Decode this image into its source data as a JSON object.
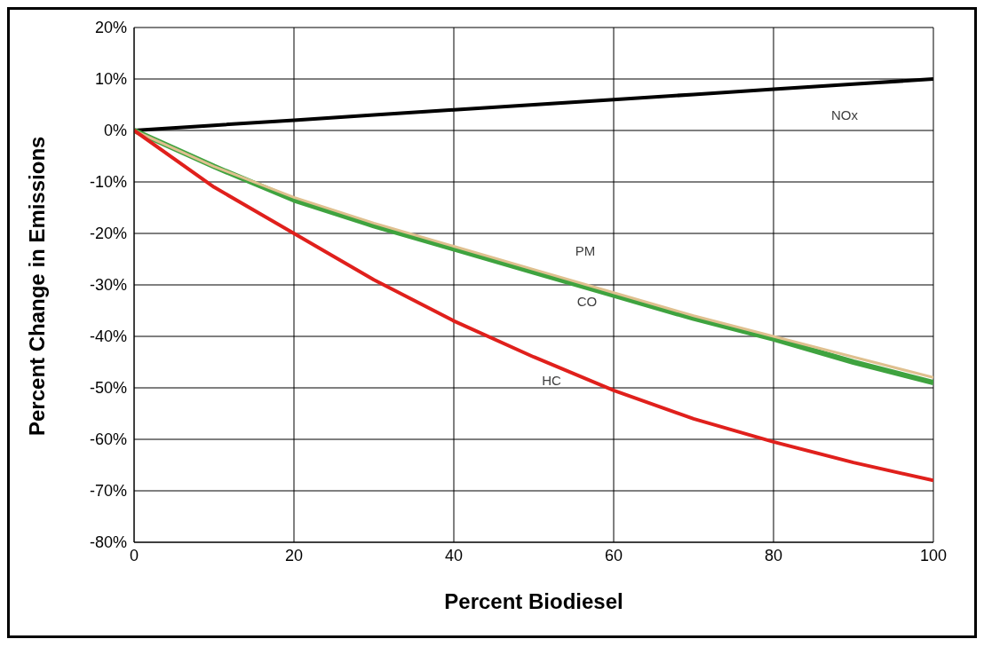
{
  "chart_data": {
    "type": "line",
    "xlabel": "Percent Biodiesel",
    "ylabel": "Percent Change in Emissions",
    "x": [
      0,
      10,
      20,
      30,
      40,
      50,
      60,
      70,
      80,
      90,
      100
    ],
    "series": [
      {
        "name": "NOx",
        "color": "#000000",
        "values": [
          0,
          1,
          2,
          3,
          4,
          5,
          6,
          7,
          8,
          9,
          10
        ]
      },
      {
        "name": "CO",
        "color": "#3fa33f",
        "values": [
          0,
          -7,
          -13.5,
          -18.5,
          -23,
          -27.5,
          -32,
          -36.5,
          -40.5,
          -45,
          -49
        ]
      },
      {
        "name": "PM",
        "color": "#dfc08f",
        "values": [
          0,
          -7,
          -13,
          -18,
          -22.5,
          -27,
          -31.5,
          -36,
          -40,
          -44,
          -48
        ]
      },
      {
        "name": "HC",
        "color": "#e0201c",
        "values": [
          0,
          -11,
          -20,
          -29,
          -37,
          -44,
          -50.5,
          -56,
          -60.5,
          -64.5,
          -68
        ]
      }
    ],
    "xlim": [
      0,
      100
    ],
    "xticks": [
      0,
      20,
      40,
      60,
      80,
      100
    ],
    "ylim": [
      -80,
      20
    ],
    "yticks": [
      {
        "value": -80,
        "label": "-80%"
      },
      {
        "value": -70,
        "label": "-70%"
      },
      {
        "value": -60,
        "label": "-60%"
      },
      {
        "value": -50,
        "label": "-50%"
      },
      {
        "value": -40,
        "label": "-40%"
      },
      {
        "value": -30,
        "label": "-30%"
      },
      {
        "value": -20,
        "label": "-20%"
      },
      {
        "value": -10,
        "label": "-10%"
      },
      {
        "value": 0,
        "label": "0%"
      },
      {
        "value": 10,
        "label": "10%"
      },
      {
        "value": 20,
        "label": "20%"
      }
    ],
    "grid": true,
    "legend": false,
    "marker": "none",
    "line_style": "solid"
  }
}
